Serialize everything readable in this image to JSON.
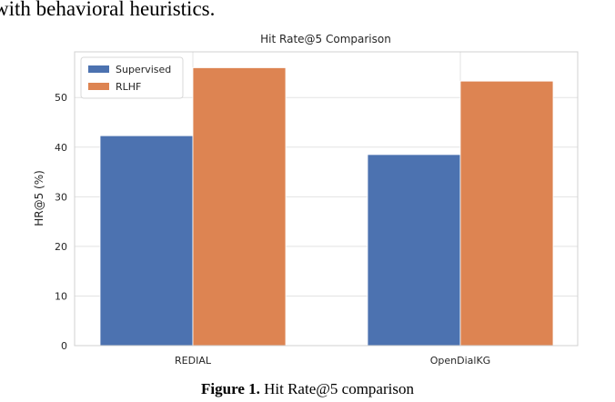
{
  "text_above": "with behavioral heuristics.",
  "chart_data": {
    "type": "bar",
    "title": "Hit Rate@5 Comparison",
    "y_label": "HR@5 (%)",
    "categories": [
      "REDIAL",
      "OpenDialKG"
    ],
    "series": [
      {
        "name": "Supervised",
        "color": "#4c72b0",
        "values": [
          42.3,
          38.5
        ]
      },
      {
        "name": "RLHF",
        "color": "#dd8452",
        "values": [
          56.0,
          53.3
        ]
      }
    ],
    "ylim": [
      0,
      59.2
    ],
    "yticks": [
      0,
      10,
      20,
      30,
      40,
      50
    ],
    "grid": true,
    "legend": "upper left"
  },
  "caption_label": "Figure 1.",
  "caption_text": "Hit Rate@5 comparison"
}
